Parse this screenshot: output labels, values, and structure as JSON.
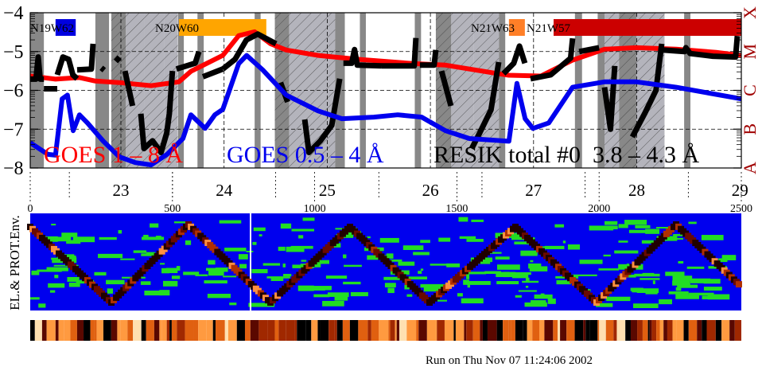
{
  "chart_data": [
    {
      "type": "line",
      "ylim": [
        -8,
        -4
      ],
      "xlim": [
        0,
        2500
      ],
      "y_ticks": [
        "−4",
        "−5",
        "−6",
        "−7",
        "−8"
      ],
      "y_tick_values": [
        -4,
        -5,
        -6,
        -7,
        -8
      ],
      "x_index_ticks": [
        "0",
        "500",
        "1000",
        "1500",
        "2000",
        "2500"
      ],
      "x_index_values": [
        0,
        500,
        1000,
        1500,
        2000,
        2500
      ],
      "day_ticks": [
        "23",
        "24",
        "25",
        "26",
        "27",
        "28",
        "29"
      ],
      "day_values": [
        23,
        24,
        25,
        26,
        27,
        28,
        29
      ],
      "grid": "dashed",
      "right_axis_classes": [
        "A",
        "B",
        "C",
        "M",
        "X"
      ],
      "right_axis_color": "#a00000",
      "active_regions": [
        {
          "label": "N19W62",
          "start": 89,
          "end": 160,
          "color": "#0000e0"
        },
        {
          "label": "N20W60",
          "start": 523,
          "end": 830,
          "color": "#ffa500"
        },
        {
          "label": "N21W63",
          "start": 1683,
          "end": 1739,
          "color": "#ff7f27"
        },
        {
          "label": "N21W57",
          "start": 1840,
          "end": 2500,
          "color": "#cc0000"
        }
      ],
      "shaded_intervals_dark": [
        [
          0,
          48
        ],
        [
          229,
          277
        ],
        [
          285,
          336
        ],
        [
          520,
          540
        ],
        [
          588,
          610
        ],
        [
          789,
          810
        ],
        [
          860,
          910
        ],
        [
          1072,
          1106
        ],
        [
          1159,
          1180
        ],
        [
          1352,
          1374
        ],
        [
          1426,
          1480
        ],
        [
          1648,
          1670
        ],
        [
          1915,
          1940
        ],
        [
          1995,
          2019
        ],
        [
          2070,
          2131
        ],
        [
          2299,
          2321
        ]
      ],
      "shaded_intervals_light": [
        [
          336,
          400
        ],
        [
          400,
          470
        ],
        [
          470,
          519
        ],
        [
          910,
          990
        ],
        [
          990,
          1072
        ],
        [
          1480,
          1560
        ],
        [
          1560,
          1648
        ],
        [
          2019,
          2070
        ],
        [
          2131,
          2230
        ]
      ],
      "hatched_intervals": [
        [
          285,
          519
        ],
        [
          860,
          1072
        ],
        [
          1426,
          1648
        ],
        [
          2019,
          2230
        ]
      ],
      "series": [
        {
          "name": "GOES 1 – 8 Å",
          "color": "#ff0000",
          "points": [
            [
              0,
              -5.63
            ],
            [
              89,
              -5.71
            ],
            [
              173,
              -5.67
            ],
            [
              229,
              -5.76
            ],
            [
              313,
              -5.8
            ],
            [
              425,
              -5.88
            ],
            [
              523,
              -5.78
            ],
            [
              565,
              -5.51
            ],
            [
              677,
              -5.1
            ],
            [
              733,
              -4.59
            ],
            [
              789,
              -4.49
            ],
            [
              845,
              -4.8
            ],
            [
              900,
              -4.96
            ],
            [
              1012,
              -5.1
            ],
            [
              1152,
              -5.2
            ],
            [
              1348,
              -5.31
            ],
            [
              1460,
              -5.35
            ],
            [
              1628,
              -5.55
            ],
            [
              1683,
              -5.61
            ],
            [
              1795,
              -5.63
            ],
            [
              1907,
              -5.22
            ],
            [
              2019,
              -4.94
            ],
            [
              2131,
              -4.9
            ],
            [
              2271,
              -4.94
            ],
            [
              2411,
              -5.02
            ],
            [
              2500,
              -5.1
            ]
          ]
        },
        {
          "name": "GOES 0.5 – 4 Å",
          "color": "#0000ee",
          "points": [
            [
              0,
              -7.35
            ],
            [
              62,
              -7.65
            ],
            [
              89,
              -7.67
            ],
            [
              112,
              -6.22
            ],
            [
              131,
              -6.12
            ],
            [
              151,
              -7.04
            ],
            [
              173,
              -6.63
            ],
            [
              201,
              -6.84
            ],
            [
              257,
              -7.31
            ],
            [
              313,
              -7.71
            ],
            [
              369,
              -7.86
            ],
            [
              425,
              -7.92
            ],
            [
              481,
              -7.65
            ],
            [
              537,
              -7.24
            ],
            [
              565,
              -6.63
            ],
            [
              615,
              -6.98
            ],
            [
              649,
              -6.63
            ],
            [
              677,
              -6.49
            ],
            [
              733,
              -5.31
            ],
            [
              761,
              -5.1
            ],
            [
              817,
              -5.47
            ],
            [
              900,
              -6.12
            ],
            [
              1012,
              -6.53
            ],
            [
              1096,
              -6.73
            ],
            [
              1208,
              -6.69
            ],
            [
              1292,
              -6.63
            ],
            [
              1376,
              -6.69
            ],
            [
              1460,
              -7.04
            ],
            [
              1544,
              -7.24
            ],
            [
              1683,
              -7.31
            ],
            [
              1711,
              -5.82
            ],
            [
              1740,
              -6.73
            ],
            [
              1767,
              -6.98
            ],
            [
              1823,
              -6.84
            ],
            [
              1907,
              -5.92
            ],
            [
              2019,
              -5.78
            ],
            [
              2131,
              -5.78
            ],
            [
              2271,
              -5.92
            ],
            [
              2500,
              -6.22
            ]
          ]
        },
        {
          "name": "RESIK total #0  3.8 – 4.3 Å",
          "color": "#000000",
          "segments": [
            [
              [
                0,
                -5.71
              ],
              [
                20,
                -5.71
              ],
              [
                28,
                -5.14
              ],
              [
                35,
                -5.71
              ],
              [
                48,
                -5.71
              ]
            ],
            [
              [
                48,
                -5.96
              ],
              [
                95,
                -5.96
              ]
            ],
            [
              [
                95,
                -5.6
              ],
              [
                115,
                -5.14
              ],
              [
                135,
                -5.2
              ],
              [
                150,
                -5.6
              ],
              [
                165,
                -5.7
              ]
            ],
            [
              [
                165,
                -5.47
              ],
              [
                215,
                -5.45
              ],
              [
                221,
                -4.8
              ]
            ],
            [
              [
                250,
                -5.42
              ],
              [
                260,
                -5.48
              ]
            ],
            [
              [
                300,
                -5.15
              ],
              [
                315,
                -5.25
              ]
            ],
            [
              [
                333,
                -5.5
              ],
              [
                360,
                -6.4
              ]
            ],
            [
              [
                389,
                -6.6
              ],
              [
                400,
                -7.5
              ],
              [
                430,
                -7.3
              ],
              [
                460,
                -7.6
              ],
              [
                480,
                -7.1
              ],
              [
                489,
                -6.6
              ],
              [
                500,
                -5.5
              ]
            ],
            [
              [
                514,
                -5.45
              ],
              [
                580,
                -5.3
              ],
              [
                593,
                -5.0
              ]
            ],
            [
              [
                607,
                -5.65
              ],
              [
                677,
                -5.45
              ]
            ],
            [
              [
                677,
                -5.45
              ],
              [
                720,
                -5.2
              ],
              [
                760,
                -4.7
              ],
              [
                800,
                -4.55
              ],
              [
                864,
                -4.8
              ]
            ],
            [
              [
                880,
                -5.8
              ],
              [
                905,
                -6.3
              ]
            ],
            [
              [
                965,
                -6.75
              ],
              [
                980,
                -7.6
              ],
              [
                1020,
                -7.3
              ],
              [
                1060,
                -6.9
              ],
              [
                1088,
                -5.7
              ]
            ],
            [
              [
                1101,
                -5.3
              ],
              [
                1130,
                -5.3
              ],
              [
                1140,
                -4.95
              ],
              [
                1150,
                -5.35
              ],
              [
                1236,
                -5.37
              ]
            ],
            [
              [
                1236,
                -5.37
              ],
              [
                1350,
                -5.37
              ],
              [
                1356,
                -4.65
              ]
            ],
            [
              [
                1370,
                -5.35
              ],
              [
                1420,
                -5.35
              ],
              [
                1426,
                -4.96
              ]
            ],
            [
              [
                1446,
                -5.5
              ],
              [
                1479,
                -6.4
              ]
            ],
            [
              [
                1552,
                -7.5
              ],
              [
                1580,
                -7.1
              ],
              [
                1620,
                -6.5
              ],
              [
                1647,
                -5.27
              ]
            ],
            [
              [
                1664,
                -5.57
              ],
              [
                1700,
                -5.3
              ],
              [
                1720,
                -4.86
              ],
              [
                1739,
                -5.3
              ]
            ],
            [
              [
                1759,
                -5.7
              ],
              [
                1830,
                -5.6
              ],
              [
                1900,
                -5.17
              ],
              [
                1907,
                -4.66
              ]
            ],
            [
              [
                1930,
                -5.0
              ],
              [
                2000,
                -4.9
              ]
            ],
            [
              [
                2019,
                -5.92
              ],
              [
                2040,
                -7.0
              ],
              [
                2055,
                -5.37
              ]
            ],
            [
              [
                2117,
                -7.2
              ],
              [
                2160,
                -6.6
              ],
              [
                2200,
                -6.0
              ],
              [
                2220,
                -4.8
              ]
            ],
            [
              [
                2223,
                -4.96
              ],
              [
                2300,
                -5.0
              ],
              [
                2305,
                -4.9
              ],
              [
                2320,
                -5.05
              ],
              [
                2400,
                -5.12
              ],
              [
                2480,
                -5.14
              ],
              [
                2486,
                -4.6
              ]
            ]
          ]
        }
      ]
    },
    {
      "type": "heatmap",
      "ylabel": "EL.& PROT.Env.",
      "background_color": "#0000ee",
      "highlight_color": "#22dd22"
    }
  ],
  "footer": {
    "run_text": "Run on Thu Nov 07 11:24:06 2002"
  }
}
